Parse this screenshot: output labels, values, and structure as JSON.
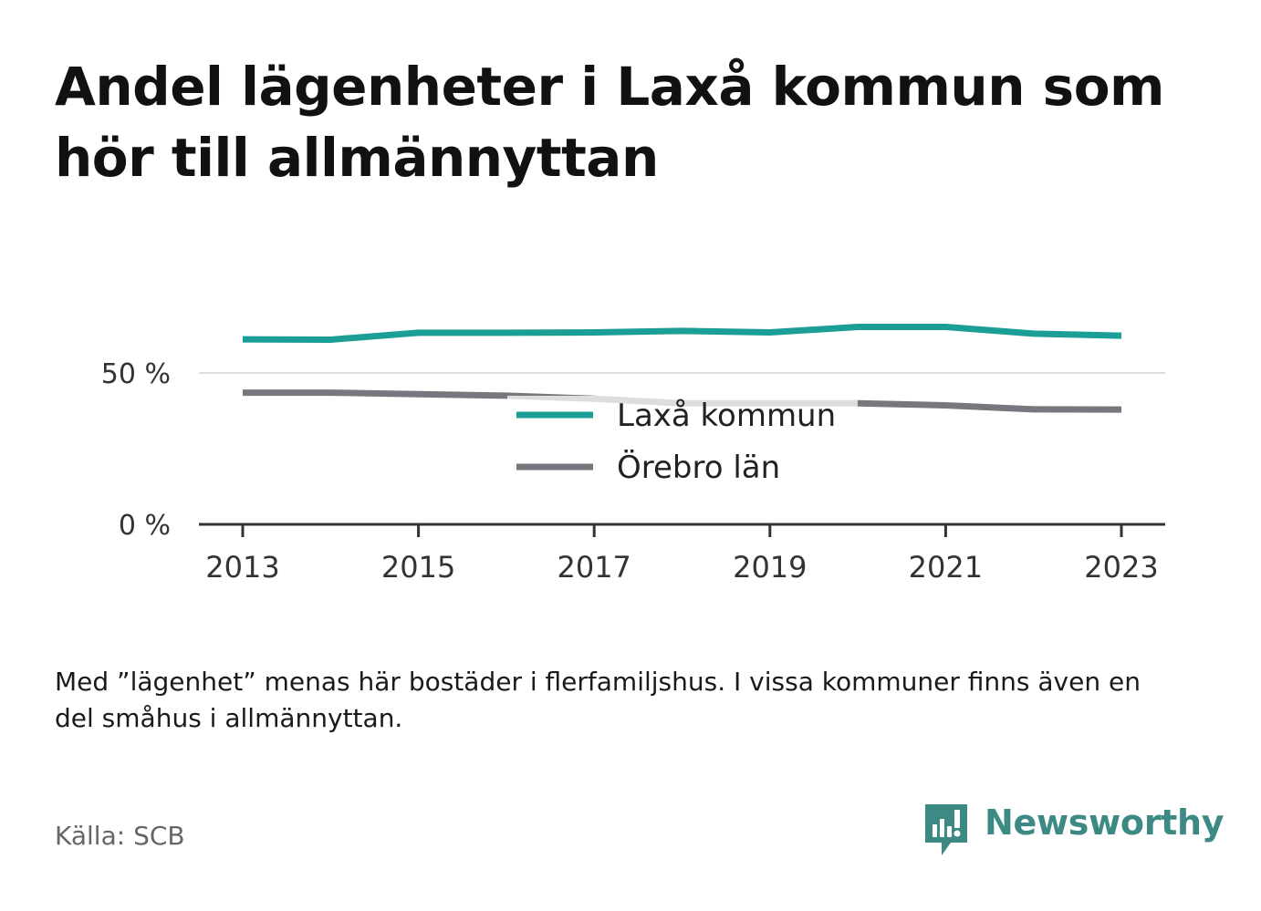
{
  "title": "Andel lägenheter i Laxå kommun som hör till allmännyttan",
  "note": "Med ”lägenhet” menas här bostäder i flerfamiljshus. I vissa kommuner finns även en del småhus i allmännyttan.",
  "source": "Källa: SCB",
  "brand": {
    "name": "Newsworthy",
    "icon": "newsworthy-logo-icon",
    "color": "#3c8a83"
  },
  "chart_data": {
    "type": "line",
    "x": [
      2013,
      2014,
      2015,
      2016,
      2017,
      2018,
      2019,
      2020,
      2021,
      2022,
      2023
    ],
    "xticks": [
      2013,
      2015,
      2017,
      2019,
      2021,
      2023
    ],
    "yticks": [
      0,
      50
    ],
    "ytick_labels": [
      "0 %",
      "50 %"
    ],
    "ylim": [
      0,
      70
    ],
    "grid": "horizontal",
    "legend_position": "center",
    "series": [
      {
        "name": "Laxå kommun",
        "color": "#1a9e96",
        "values": [
          61.1,
          61.0,
          63.3,
          63.3,
          63.4,
          63.9,
          63.4,
          65.2,
          65.2,
          63.0,
          62.3
        ]
      },
      {
        "name": "Örebro län",
        "color": "#77777e",
        "values": [
          43.5,
          43.5,
          43.0,
          42.5,
          41.5,
          40.0,
          40.0,
          40.0,
          39.3,
          38.0,
          37.9
        ]
      }
    ]
  }
}
